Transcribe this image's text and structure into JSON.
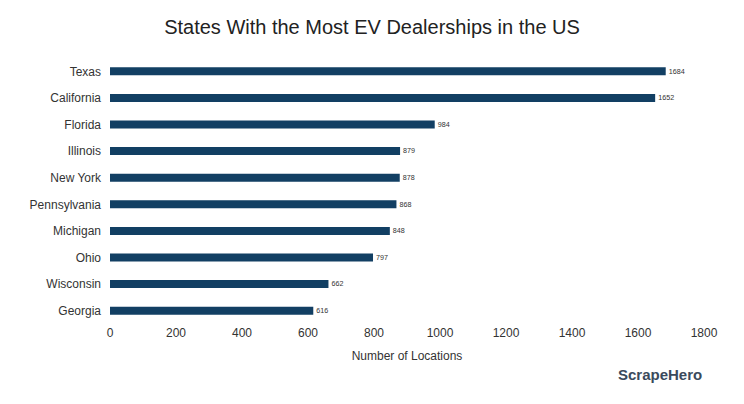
{
  "chart_data": {
    "type": "bar",
    "title": "States With the Most EV Dealerships in the US",
    "x_label": "Number of Locations",
    "orientation": "horizontal",
    "categories": [
      "Texas",
      "California",
      "Florida",
      "Illinois",
      "New York",
      "Pennsylvania",
      "Michigan",
      "Ohio",
      "Wisconsin",
      "Georgia"
    ],
    "values": [
      1684,
      1652,
      984,
      879,
      878,
      868,
      848,
      797,
      662,
      616
    ],
    "color": "#123f63",
    "xlim": [
      0,
      1800
    ],
    "xticks": [
      0,
      200,
      400,
      600,
      800,
      1000,
      1200,
      1400,
      1600,
      1800
    ],
    "grid": false,
    "data_labels": true,
    "annotations": [
      {
        "text": "ScrapeHero"
      }
    ]
  }
}
